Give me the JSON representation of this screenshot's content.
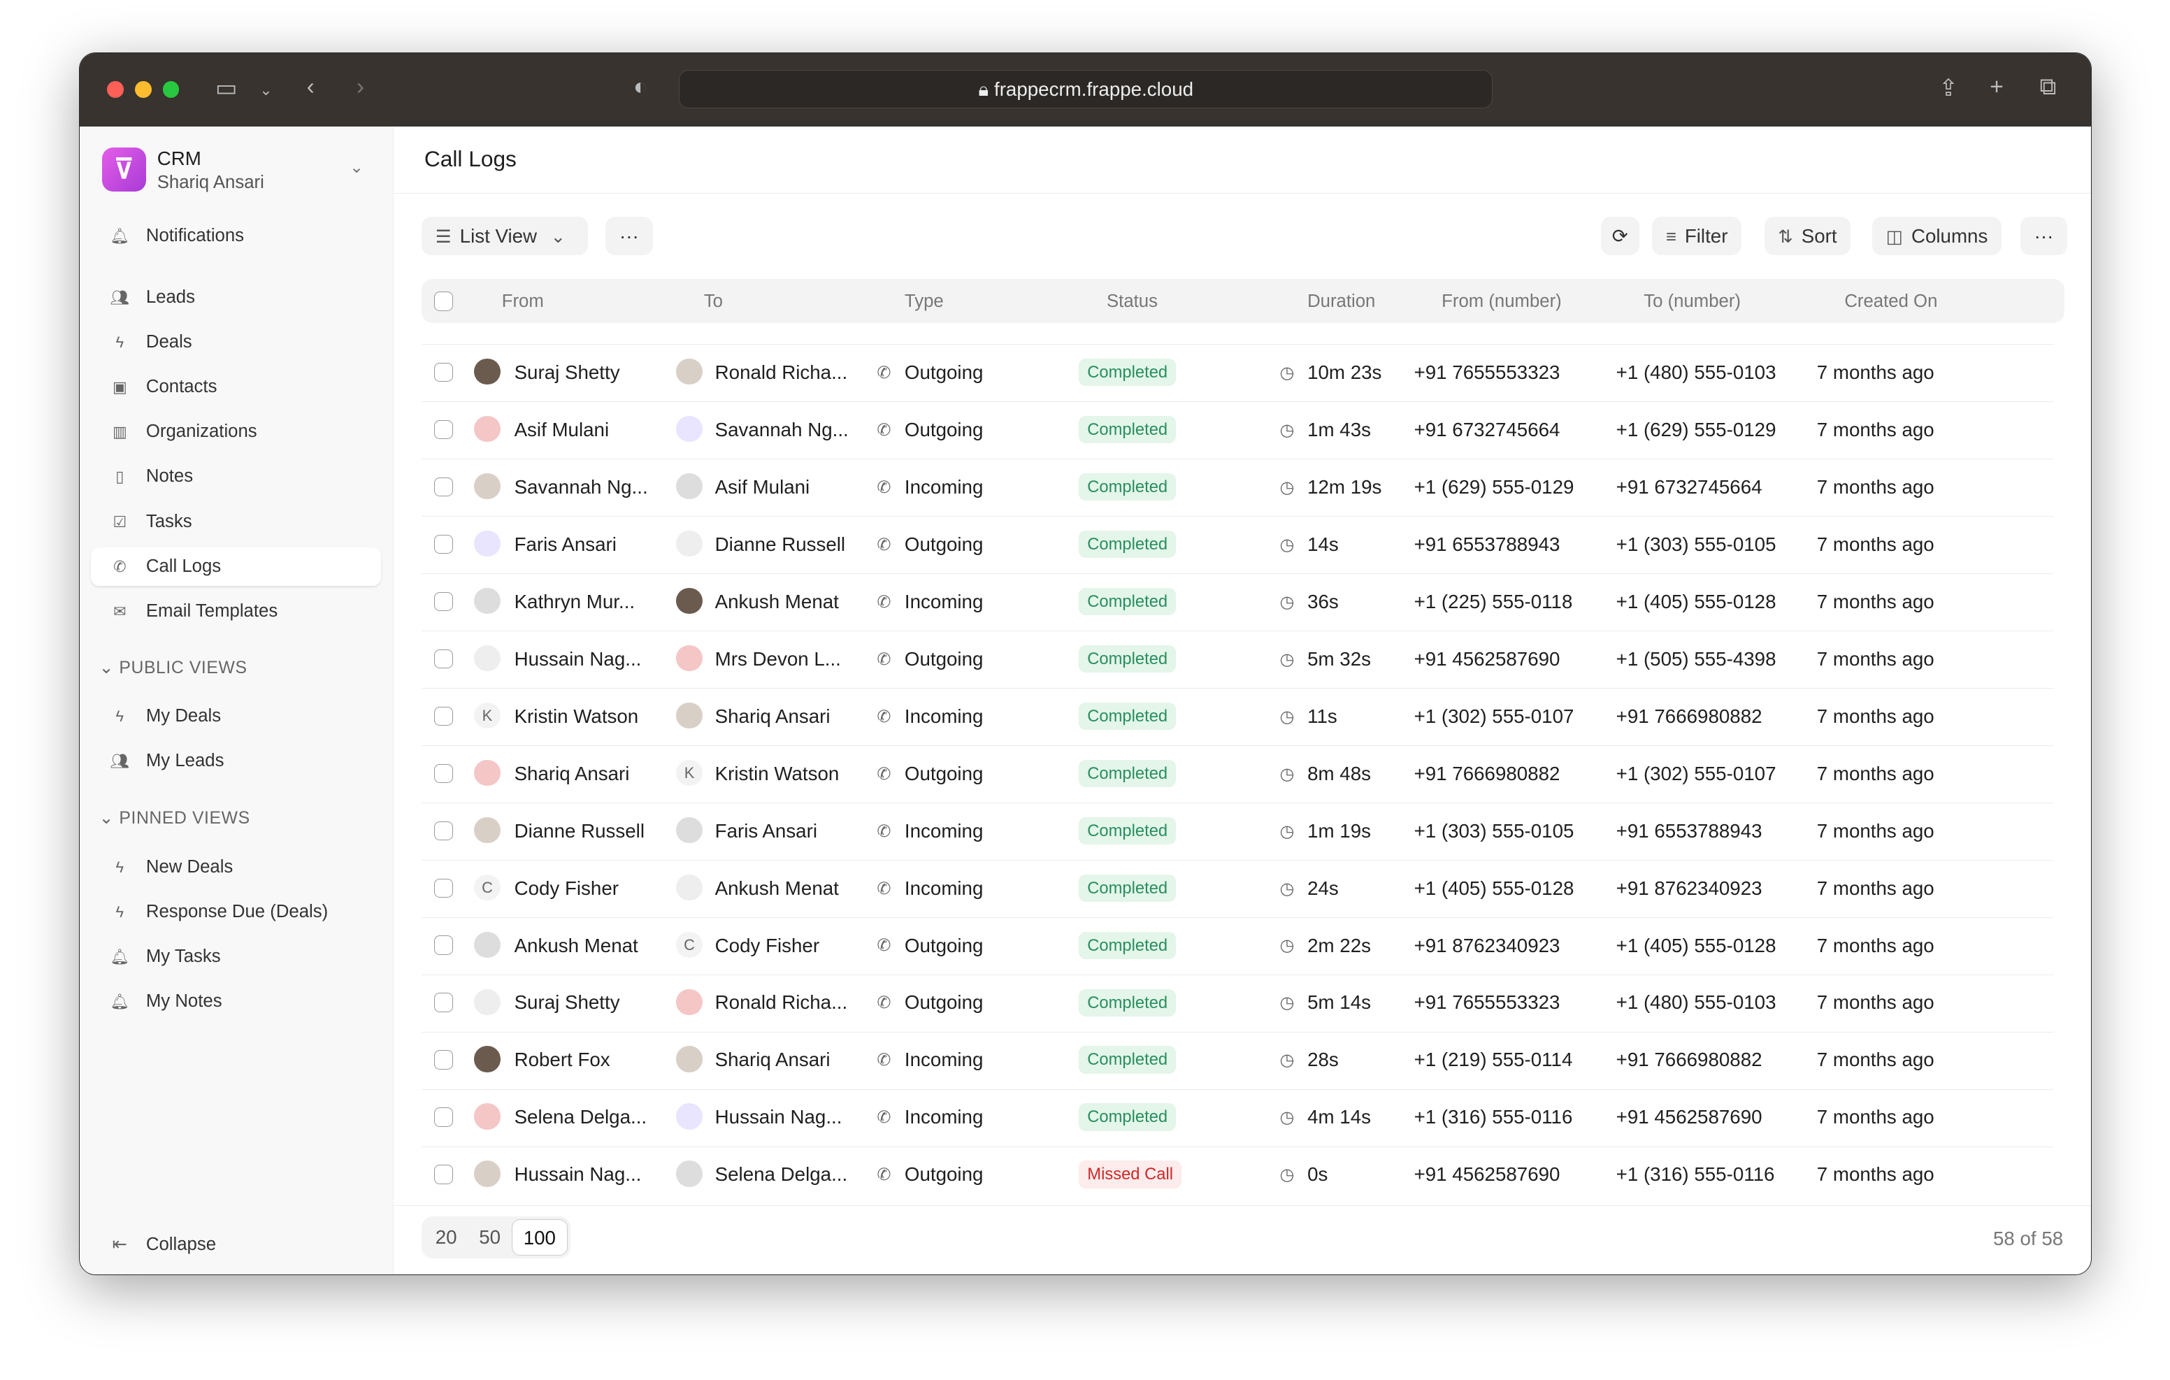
{
  "browser": {
    "url": "frappecrm.frappe.cloud"
  },
  "sidebar": {
    "app": "CRM",
    "user": "Shariq Ansari",
    "items": [
      {
        "label": "Notifications",
        "icon": "bell-icon"
      },
      {
        "label": "Leads",
        "icon": "users-icon"
      },
      {
        "label": "Deals",
        "icon": "bolt-icon"
      },
      {
        "label": "Contacts",
        "icon": "contact-icon"
      },
      {
        "label": "Organizations",
        "icon": "building-icon"
      },
      {
        "label": "Notes",
        "icon": "note-icon"
      },
      {
        "label": "Tasks",
        "icon": "checkbox-icon"
      },
      {
        "label": "Call Logs",
        "icon": "phone-icon",
        "active": true
      },
      {
        "label": "Email Templates",
        "icon": "mail-icon"
      }
    ],
    "public_title": "PUBLIC VIEWS",
    "public": [
      {
        "label": "My Deals",
        "icon": "bolt-icon"
      },
      {
        "label": "My Leads",
        "icon": "users-icon"
      }
    ],
    "pinned_title": "PINNED VIEWS",
    "pinned": [
      {
        "label": "New Deals",
        "icon": "bolt-icon"
      },
      {
        "label": "Response Due (Deals)",
        "icon": "bolt-icon"
      },
      {
        "label": "My Tasks",
        "icon": "bell-icon"
      },
      {
        "label": "My Notes",
        "icon": "bell-icon"
      }
    ],
    "collapse": "Collapse"
  },
  "main": {
    "title": "Call Logs",
    "view": "List View",
    "filter": "Filter",
    "sort": "Sort",
    "columns_btn": "Columns",
    "columns": [
      "From",
      "To",
      "Type",
      "Status",
      "Duration",
      "From (number)",
      "To (number)",
      "Created On"
    ],
    "rows": [
      [
        "Suraj Shetty",
        "Ronald Richa...",
        "Outgoing",
        "Completed",
        "10m 23s",
        "+91 7655553323",
        "+1 (480) 555-0103",
        "7 months ago"
      ],
      [
        "Asif Mulani",
        "Savannah Ng...",
        "Outgoing",
        "Completed",
        "1m 43s",
        "+91 6732745664",
        "+1 (629) 555-0129",
        "7 months ago"
      ],
      [
        "Savannah Ng...",
        "Asif Mulani",
        "Incoming",
        "Completed",
        "12m 19s",
        "+1 (629) 555-0129",
        "+91 6732745664",
        "7 months ago"
      ],
      [
        "Faris Ansari",
        "Dianne Russell",
        "Outgoing",
        "Completed",
        "14s",
        "+91 6553788943",
        "+1 (303) 555-0105",
        "7 months ago"
      ],
      [
        "Kathryn Mur...",
        "Ankush Menat",
        "Incoming",
        "Completed",
        "36s",
        "+1 (225) 555-0118",
        "+1 (405) 555-0128",
        "7 months ago"
      ],
      [
        "Hussain Nag...",
        "Mrs Devon L...",
        "Outgoing",
        "Completed",
        "5m 32s",
        "+91 4562587690",
        "+1 (505) 555-4398",
        "7 months ago"
      ],
      [
        "Kristin Watson",
        "Shariq Ansari",
        "Incoming",
        "Completed",
        "11s",
        "+1 (302) 555-0107",
        "+91 7666980882",
        "7 months ago"
      ],
      [
        "Shariq Ansari",
        "Kristin Watson",
        "Outgoing",
        "Completed",
        "8m 48s",
        "+91 7666980882",
        "+1 (302) 555-0107",
        "7 months ago"
      ],
      [
        "Dianne Russell",
        "Faris Ansari",
        "Incoming",
        "Completed",
        "1m 19s",
        "+1 (303) 555-0105",
        "+91 6553788943",
        "7 months ago"
      ],
      [
        "Cody Fisher",
        "Ankush Menat",
        "Incoming",
        "Completed",
        "24s",
        "+1 (405) 555-0128",
        "+91 8762340923",
        "7 months ago"
      ],
      [
        "Ankush Menat",
        "Cody Fisher",
        "Outgoing",
        "Completed",
        "2m 22s",
        "+91 8762340923",
        "+1 (405) 555-0128",
        "7 months ago"
      ],
      [
        "Suraj Shetty",
        "Ronald Richa...",
        "Outgoing",
        "Completed",
        "5m 14s",
        "+91 7655553323",
        "+1 (480) 555-0103",
        "7 months ago"
      ],
      [
        "Robert Fox",
        "Shariq Ansari",
        "Incoming",
        "Completed",
        "28s",
        "+1 (219) 555-0114",
        "+91 7666980882",
        "7 months ago"
      ],
      [
        "Selena Delga...",
        "Hussain Nag...",
        "Incoming",
        "Completed",
        "4m 14s",
        "+1 (316) 555-0116",
        "+91 4562587690",
        "7 months ago"
      ],
      [
        "Hussain Nag...",
        "Selena Delga...",
        "Outgoing",
        "Missed Call",
        "0s",
        "+91 4562587690",
        "+1 (316) 555-0116",
        "7 months ago"
      ]
    ],
    "page_sizes": [
      "20",
      "50",
      "100"
    ],
    "page_size_selected": "100",
    "count": "58 of 58"
  },
  "colors": {
    "completed_bg": "#e4f5e9",
    "completed_fg": "#278f5e",
    "missed_bg": "#fdecec",
    "missed_fg": "#cc2929",
    "accent": "#c94ae0"
  }
}
